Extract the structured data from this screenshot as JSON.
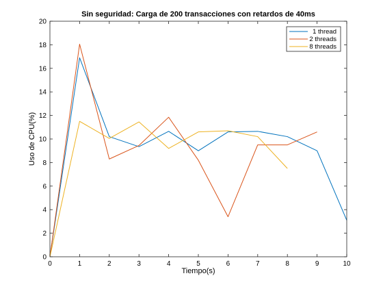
{
  "chart_data": {
    "type": "line",
    "title": "Sin seguridad: Carga de 200 transacciones con retardos de 40ms",
    "xlabel": "Tiempo(s)",
    "ylabel": "Uso de CPU(%)",
    "xlim": [
      0,
      10
    ],
    "ylim": [
      0,
      20
    ],
    "xticks": [
      "0",
      "1",
      "2",
      "3",
      "4",
      "5",
      "6",
      "7",
      "8",
      "9",
      "10"
    ],
    "yticks": [
      "0",
      "2",
      "4",
      "6",
      "8",
      "10",
      "12",
      "14",
      "16",
      "18",
      "20"
    ],
    "grid": false,
    "legend_position": "top-right",
    "series": [
      {
        "name": "1 thread",
        "color": "#0072BD",
        "x": [
          0,
          1,
          2,
          3,
          4,
          5,
          6,
          7,
          8,
          9,
          10
        ],
        "y": [
          0,
          16.9,
          10.2,
          9.35,
          10.65,
          9.0,
          10.6,
          10.65,
          10.2,
          9.0,
          3.1
        ]
      },
      {
        "name": "2 threads",
        "color": "#D95319",
        "x": [
          0,
          1,
          2,
          3,
          4,
          5,
          6,
          7,
          8,
          9
        ],
        "y": [
          0,
          18.05,
          8.3,
          9.45,
          11.85,
          8.2,
          3.4,
          9.5,
          9.5,
          10.6
        ]
      },
      {
        "name": "8 threads",
        "color": "#EDB120",
        "x": [
          0,
          1,
          2,
          3,
          4,
          5,
          6,
          7,
          8
        ],
        "y": [
          0,
          11.5,
          10.05,
          11.45,
          9.2,
          10.6,
          10.7,
          10.2,
          7.5
        ]
      }
    ]
  }
}
